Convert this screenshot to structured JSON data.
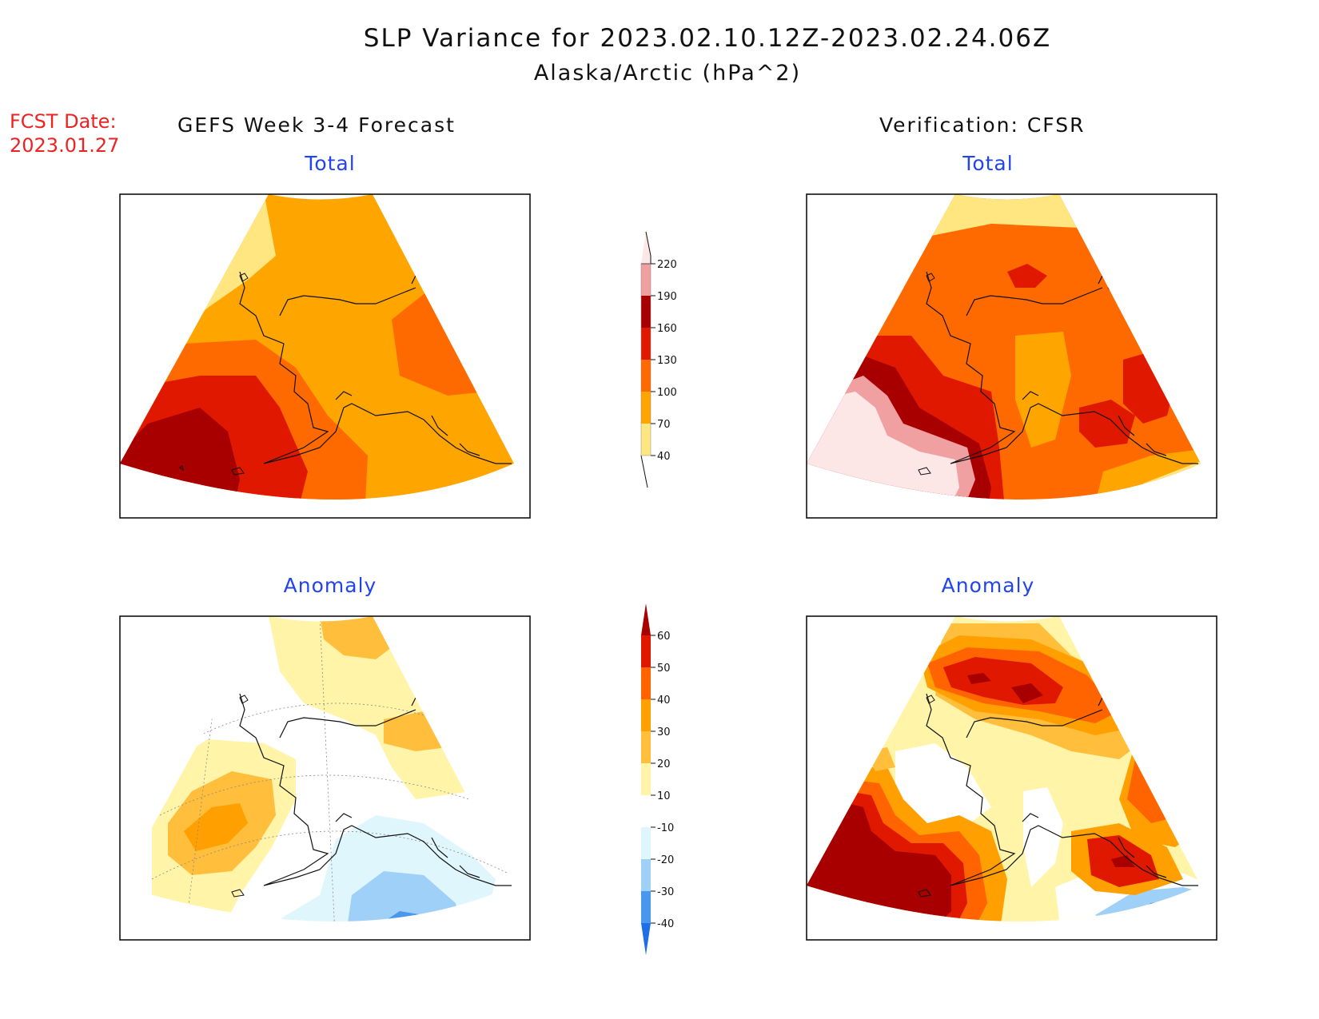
{
  "header": {
    "title": "SLP Variance for 2023.02.10.12Z-2023.02.24.06Z",
    "subtitle": "Alaska/Arctic (hPa^2)"
  },
  "forecast_date": {
    "label": "FCST Date:",
    "value": "2023.01.27"
  },
  "columns": {
    "left": "GEFS Week 3-4 Forecast",
    "right": "Verification: CFSR"
  },
  "panels": [
    {
      "id": "forecast-total",
      "title": "Total"
    },
    {
      "id": "verification-total",
      "title": "Total"
    },
    {
      "id": "forecast-anomaly",
      "title": "Anomaly"
    },
    {
      "id": "verification-anomaly",
      "title": "Anomaly"
    }
  ],
  "colorbars": {
    "total": {
      "ticks": [
        "40",
        "70",
        "100",
        "130",
        "160",
        "190",
        "220"
      ],
      "colors": [
        "#ffe680",
        "#ffa500",
        "#ff6a00",
        "#e01800",
        "#a80000",
        "#f0a0a0",
        "#fde6e6"
      ]
    },
    "anomaly": {
      "ticks": [
        "-40",
        "-30",
        "-20",
        "-10",
        "10",
        "20",
        "30",
        "40",
        "50",
        "60"
      ],
      "colors": [
        "#1e6ee6",
        "#4a98ee",
        "#9fd0f8",
        "#e0f6fd",
        "#ffffff",
        "#fff4a8",
        "#ffbe3c",
        "#ffa000",
        "#ff6400",
        "#e01800",
        "#a80000"
      ]
    }
  }
}
